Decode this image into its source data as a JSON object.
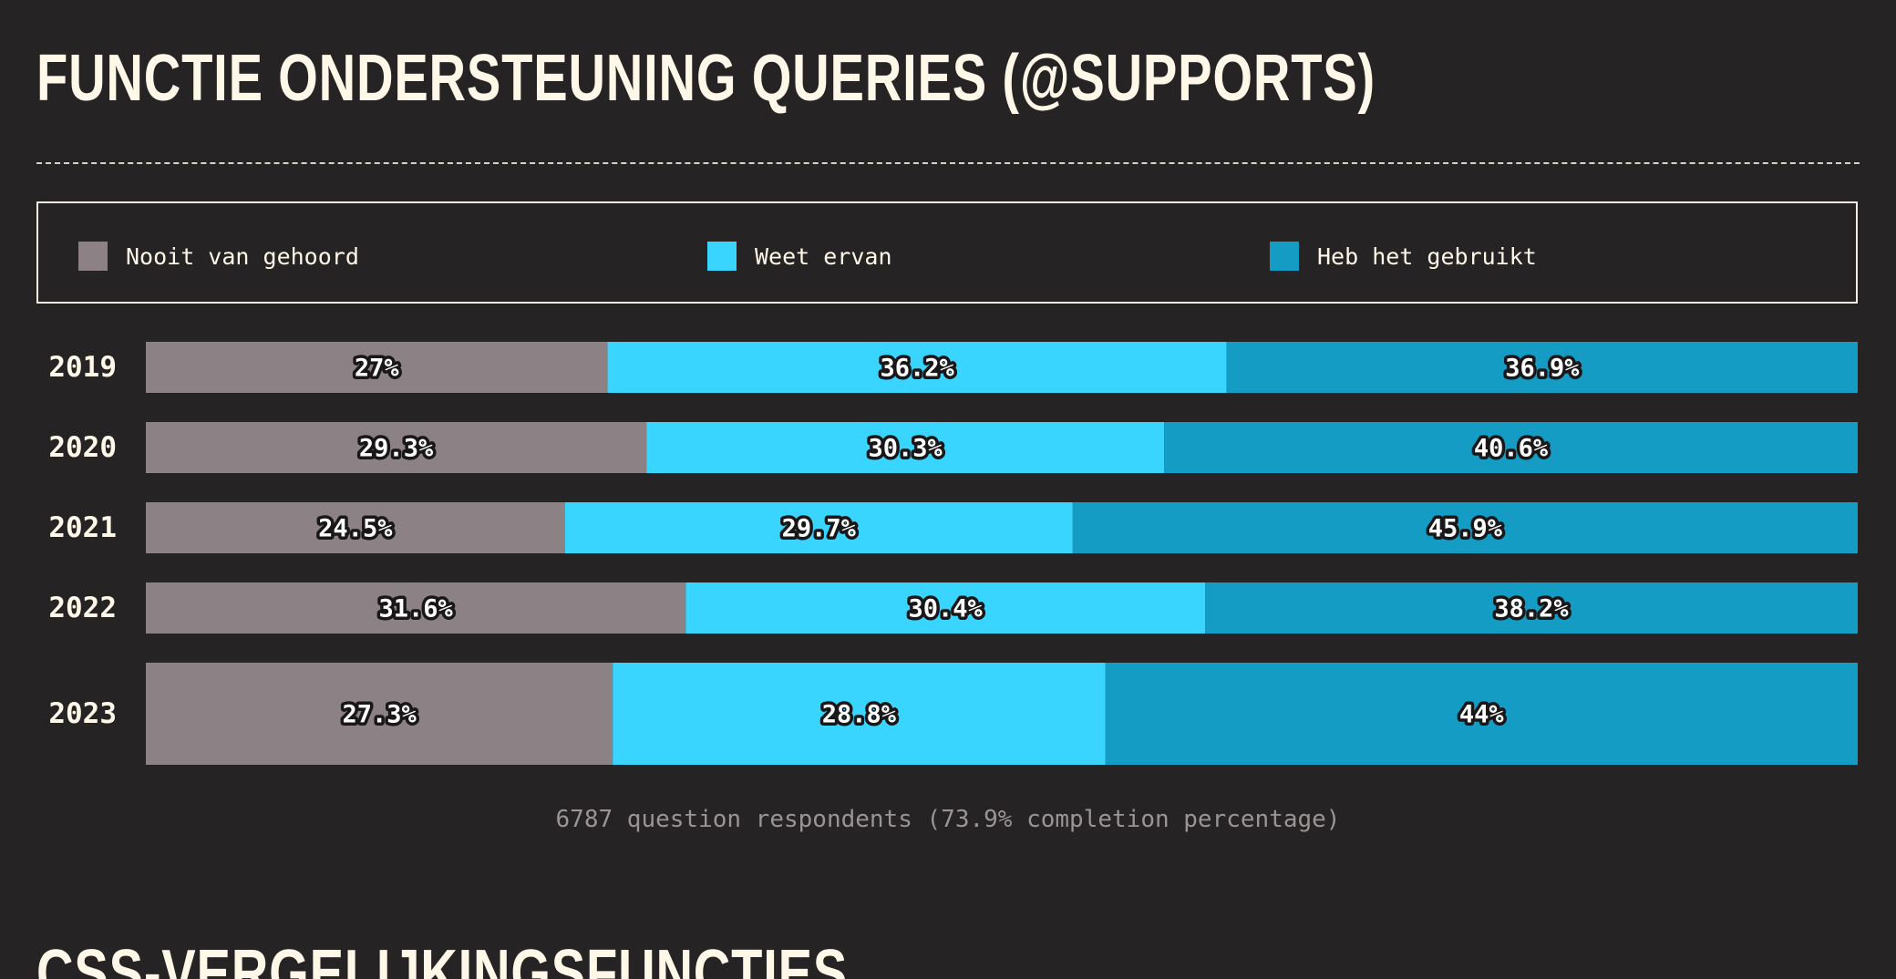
{
  "page": {
    "title": "Functie ondersteuning queries (@supports)",
    "next_title": "CSS-vergelijkingsfuncties"
  },
  "legend": {
    "items": [
      {
        "label": "Nooit van gehoord",
        "color": "#8c8184"
      },
      {
        "label": "Weet ervan",
        "color": "#3ad5ff"
      },
      {
        "label": "Heb het gebruikt",
        "color": "#149cc4"
      }
    ]
  },
  "footnote": "6787 question respondents (73.9% completion percentage)",
  "chart_data": {
    "type": "bar",
    "orientation": "horizontal",
    "stacked": true,
    "categories": [
      "2019",
      "2020",
      "2021",
      "2022",
      "2023"
    ],
    "series": [
      {
        "name": "Nooit van gehoord",
        "values": [
          27,
          29.3,
          24.5,
          31.6,
          27.3
        ],
        "labels": [
          "27%",
          "29.3%",
          "24.5%",
          "31.6%",
          "27.3%"
        ],
        "color": "#8c8184"
      },
      {
        "name": "Weet ervan",
        "values": [
          36.2,
          30.3,
          29.7,
          30.4,
          28.8
        ],
        "labels": [
          "36.2%",
          "30.3%",
          "29.7%",
          "30.4%",
          "28.8%"
        ],
        "color": "#3ad5ff"
      },
      {
        "name": "Heb het gebruikt",
        "values": [
          36.9,
          40.6,
          45.9,
          38.2,
          44
        ],
        "labels": [
          "36.9%",
          "40.6%",
          "45.9%",
          "38.2%",
          "44%"
        ],
        "color": "#149cc4"
      }
    ],
    "xlim": [
      0,
      100
    ],
    "grid": false,
    "legend": "top"
  }
}
